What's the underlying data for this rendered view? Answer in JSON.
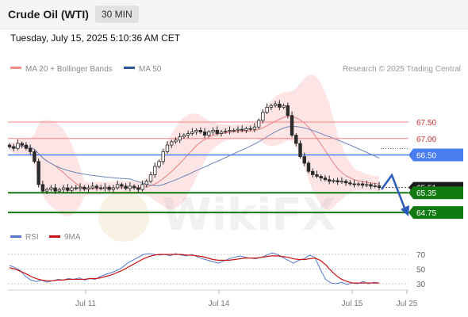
{
  "header": {
    "title": "Crude Oil (WTI)",
    "timeframe": "30 MIN"
  },
  "datetime": "Tuesday, July 15, 2025 5:10:36 AM CET",
  "legend": {
    "bollinger_label": "MA 20 + Bollinger Bands",
    "ma50_label": "MA 50",
    "credit": "Research © 2025 Trading Central",
    "rsi_label": "RSI",
    "rsi_ma_label": "9MA"
  },
  "watermark": "WikiFX",
  "colors": {
    "bollinger": "#f08c8c",
    "ma50": "#2f5596",
    "red_level": "#ff8080",
    "blue_level": "#4a7df0",
    "green_level": "#127a12",
    "current_price_bg": "#1a1a1a",
    "rsi": "#5577cc",
    "rsi_ma": "#cc1111"
  },
  "chart_data": {
    "type": "candlestick",
    "instrument": "Crude Oil (WTI)",
    "interval": "30 MIN",
    "x_ticks": [
      "Jul 11",
      "Jul 14",
      "Jul 15",
      "Jul 25"
    ],
    "price_levels": [
      {
        "label": "67.50",
        "value": 67.5,
        "style": "red"
      },
      {
        "label": "67.00",
        "value": 67.0,
        "style": "red"
      },
      {
        "label": "66.50",
        "value": 66.5,
        "style": "blue"
      },
      {
        "label": "65.51",
        "value": 65.51,
        "style": "current"
      },
      {
        "label": "65.35",
        "value": 65.35,
        "style": "green"
      },
      {
        "label": "64.75",
        "value": 64.75,
        "style": "green"
      }
    ],
    "ylim": [
      64.3,
      68.8
    ],
    "close_series": [
      66.75,
      66.7,
      66.85,
      66.8,
      66.7,
      66.6,
      66.3,
      65.6,
      65.4,
      65.45,
      65.5,
      65.4,
      65.45,
      65.5,
      65.42,
      65.5,
      65.48,
      65.52,
      65.46,
      65.5,
      65.55,
      65.5,
      65.48,
      65.52,
      65.45,
      65.5,
      65.6,
      65.55,
      65.48,
      65.55,
      65.5,
      65.45,
      65.6,
      65.7,
      65.9,
      66.15,
      66.3,
      66.6,
      66.8,
      66.9,
      66.95,
      67.05,
      67.1,
      67.15,
      67.2,
      67.25,
      67.2,
      67.1,
      67.2,
      67.25,
      67.15,
      67.2,
      67.22,
      67.25,
      67.25,
      67.28,
      67.25,
      67.3,
      67.28,
      67.35,
      67.55,
      67.8,
      67.95,
      68.0,
      68.05,
      67.95,
      68.0,
      67.7,
      67.1,
      66.85,
      66.45,
      66.25,
      66.0,
      65.9,
      65.85,
      65.8,
      65.75,
      65.7,
      65.72,
      65.68,
      65.7,
      65.65,
      65.62,
      65.6,
      65.62,
      65.58,
      65.6,
      65.55,
      65.56,
      65.51
    ],
    "rsi": {
      "ticks": [
        30,
        50,
        70
      ],
      "ylim": [
        20,
        80
      ],
      "values": [
        55,
        52,
        48,
        40,
        35,
        33,
        35,
        32,
        34,
        36,
        35,
        37,
        36,
        38,
        35,
        37,
        36,
        40,
        43,
        45,
        48,
        52,
        58,
        62,
        66,
        70,
        71,
        70,
        69,
        70,
        68,
        71,
        69,
        68,
        70,
        67,
        64,
        62,
        60,
        58,
        61,
        64,
        66,
        68,
        66,
        65,
        64,
        66,
        69,
        72,
        70,
        66,
        62,
        58,
        62,
        64,
        69,
        66,
        50,
        36,
        31,
        30,
        32,
        29,
        31,
        30,
        33,
        30,
        32,
        31
      ],
      "ma9": [
        52,
        50,
        47,
        44,
        40,
        37,
        35,
        34,
        34,
        35,
        35,
        36,
        36,
        36,
        36,
        37,
        37,
        38,
        40,
        42,
        45,
        48,
        52,
        56,
        60,
        64,
        67,
        69,
        70,
        70,
        70,
        70,
        70,
        69,
        69,
        68,
        67,
        65,
        63,
        62,
        62,
        62,
        63,
        64,
        65,
        65,
        65,
        66,
        67,
        68,
        68,
        67,
        66,
        64,
        63,
        63,
        64,
        65,
        62,
        56,
        48,
        41,
        36,
        33,
        31,
        31,
        31,
        31,
        31,
        31
      ]
    }
  }
}
